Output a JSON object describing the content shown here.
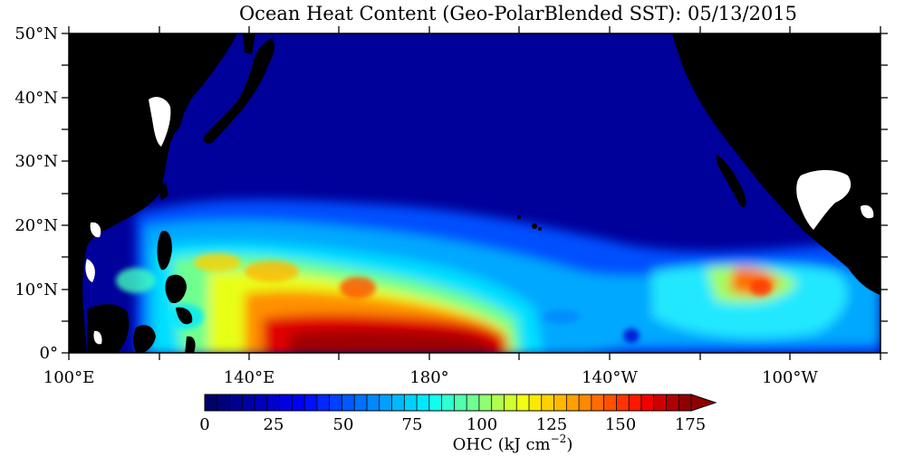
{
  "title": "Ocean Heat Content (Geo-PolarBlended SST): 05/13/2015",
  "map": {
    "lat_labels": [
      "50°N",
      "40°N",
      "30°N",
      "20°N",
      "10°N",
      "0°"
    ],
    "lon_labels": [
      "100°E",
      "140°E",
      "180°",
      "140°W",
      "100°W"
    ],
    "land_color": "#000000",
    "missing_color": "#ffffff",
    "region": "Western & Central Pacific, 0°–50°N, 100°E–80°W"
  },
  "colorbar": {
    "label_text": "OHC (kJ cm",
    "label_exp": "−2",
    "label_close": ")",
    "tick_labels": [
      "0",
      "25",
      "50",
      "75",
      "100",
      "125",
      "150",
      "175"
    ],
    "colors": [
      "#000066",
      "#00007a",
      "#00008f",
      "#0000a3",
      "#0000b8",
      "#0000cc",
      "#0000e0",
      "#0000f5",
      "#0010ff",
      "#0028ff",
      "#0040ff",
      "#0058ff",
      "#0070ff",
      "#0088ff",
      "#00a0ff",
      "#00b8ff",
      "#00d0ff",
      "#00e8ff",
      "#10ffef",
      "#30ffcf",
      "#50ffaf",
      "#70ff8f",
      "#90ff6f",
      "#b0ff4f",
      "#d0ff2f",
      "#efff10",
      "#ffe800",
      "#ffd000",
      "#ffb800",
      "#ffa000",
      "#ff8800",
      "#ff6c00",
      "#ff5000",
      "#ff3400",
      "#ff1800",
      "#f00000",
      "#d00000",
      "#b00000",
      "#900000"
    ]
  }
}
